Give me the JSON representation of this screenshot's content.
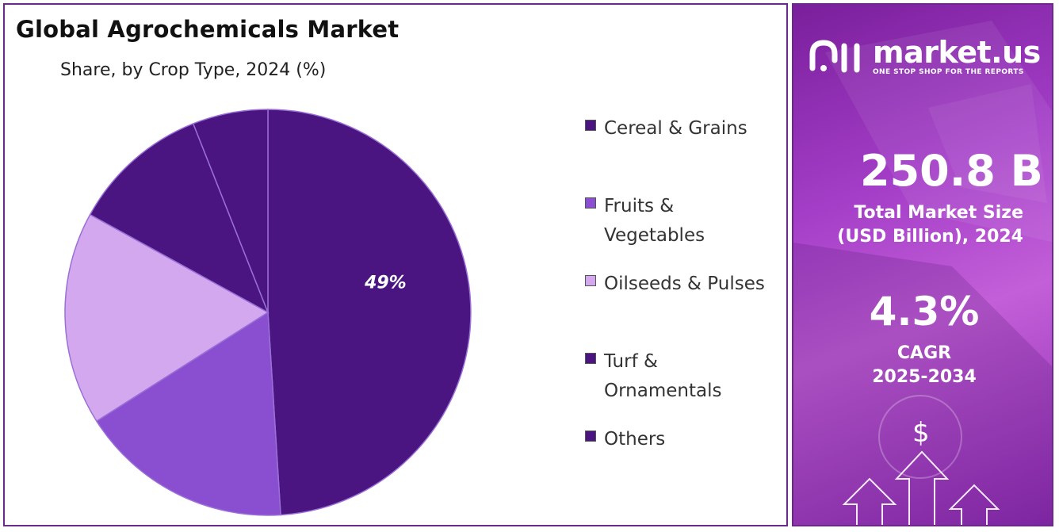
{
  "chart_data": {
    "type": "pie",
    "title": "Global Agrochemicals Market",
    "subtitle": "Share, by Crop Type, 2024 (%)",
    "categories": [
      "Cereal & Grains",
      "Fruits & Vegetables",
      "Oilseeds & Pulses",
      "Turf & Ornamentals",
      "Others"
    ],
    "legend_lines": [
      [
        "Cereal & Grains"
      ],
      [
        "Fruits &",
        "Vegetables"
      ],
      [
        "Oilseeds & Pulses"
      ],
      [
        "Turf &",
        "Ornamentals"
      ],
      [
        "Others"
      ]
    ],
    "values": [
      49,
      17,
      17,
      11,
      6
    ],
    "colors": [
      "#4a1580",
      "#8a4fd1",
      "#d4a8ef",
      "#4a1580",
      "#4a1580"
    ],
    "data_labels": [
      "49%",
      "",
      "",
      "",
      ""
    ],
    "legend_position": "right"
  },
  "side_panel": {
    "brand_name": "market.us",
    "brand_tagline": "ONE STOP SHOP FOR THE REPORTS",
    "market_size_value": "250.8 B",
    "market_size_label_line1": "Total Market Size",
    "market_size_label_line2": "(USD Billion), 2024",
    "cagr_value": "4.3%",
    "cagr_label_line1": "CAGR",
    "cagr_label_line2": "2025-2034",
    "dollar_symbol": "$",
    "colors": {
      "panel_start": "#7a1f9c",
      "panel_mid": "#c35fd8",
      "border": "#6b2a8a"
    },
    "logo_icon": "market-us-logo-icon",
    "decor_icon": "growth-arrows-icon"
  }
}
